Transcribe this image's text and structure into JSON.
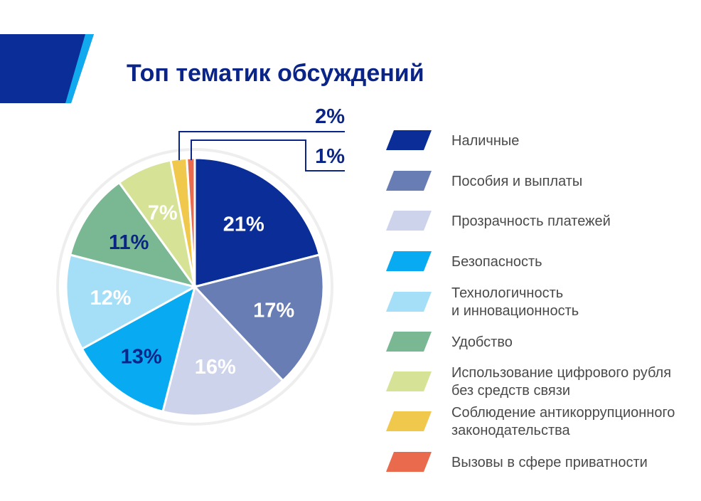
{
  "title": "Топ тематик обсуждений",
  "colors": {
    "banner_dark": "#0a2d97",
    "banner_light": "#11aaee",
    "title": "#0a2587",
    "label_dark": "#0a2587",
    "legend_text": "#4a4a4a",
    "ring": "#eeeeee"
  },
  "chart_data": {
    "type": "pie",
    "title": "Топ тематик обсуждений",
    "slices": [
      {
        "label": "Наличные",
        "value": 21,
        "display": "21%",
        "color": "#0a2d97",
        "label_color": "#ffffff"
      },
      {
        "label": "Пособия и выплаты",
        "value": 17,
        "display": "17%",
        "color": "#687db3",
        "label_color": "#ffffff"
      },
      {
        "label": "Прозрачность платежей",
        "value": 16,
        "display": "16%",
        "color": "#cdd3ea",
        "label_color": "#ffffff"
      },
      {
        "label": "Безопасность",
        "value": 13,
        "display": "13%",
        "color": "#08abf1",
        "label_color": "#0a2587"
      },
      {
        "label": "Технологичность и инновационность",
        "value": 12,
        "display": "12%",
        "color": "#a4dff7",
        "label_color": "#ffffff"
      },
      {
        "label": "Удобство",
        "value": 11,
        "display": "11%",
        "color": "#79b893",
        "label_color": "#0a2587"
      },
      {
        "label": "Использование цифрового рубля без средств связи",
        "value": 7,
        "display": "7%",
        "color": "#d6e396",
        "label_color": "#ffffff"
      },
      {
        "label": "Соблюдение антикоррупционного законодательства",
        "value": 2,
        "display": "2%",
        "color": "#f0c84c",
        "label_color": "#0a2587"
      },
      {
        "label": "Вызовы в сфере приватности",
        "value": 1,
        "display": "1%",
        "color": "#e96a4d",
        "label_color": "#0a2587"
      }
    ],
    "legend": [
      {
        "lines": [
          "Наличные"
        ]
      },
      {
        "lines": [
          "Пособия и выплаты"
        ]
      },
      {
        "lines": [
          "Прозрачность платежей"
        ]
      },
      {
        "lines": [
          "Безопасность"
        ]
      },
      {
        "lines": [
          "Технологичность",
          "и инновационность"
        ]
      },
      {
        "lines": [
          "Удобство"
        ]
      },
      {
        "lines": [
          "Использование цифрового рубля",
          "без средств связи"
        ]
      },
      {
        "lines": [
          "Соблюдение антикоррупционного",
          "законодательства"
        ]
      },
      {
        "lines": [
          "Вызовы в сфере приватности"
        ]
      }
    ],
    "legend_position": "right"
  }
}
